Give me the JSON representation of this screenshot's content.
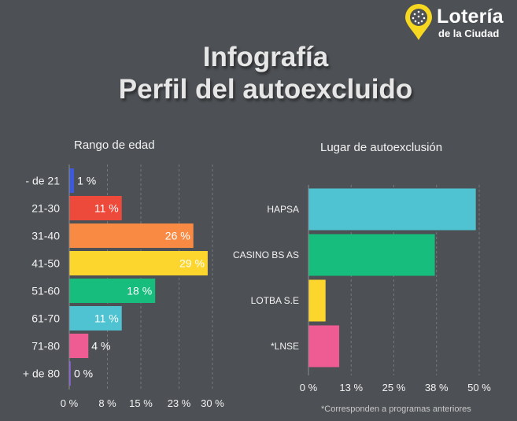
{
  "logo": {
    "title": "Lotería",
    "subtitle": "de la Ciudad",
    "icon": "map-pin-icon"
  },
  "title_line1": "Infografía",
  "title_line2": "Perfil del autoexcluido",
  "footnote": "*Corresponden a programas anteriores",
  "chart_data": [
    {
      "type": "bar",
      "orientation": "horizontal",
      "title": "Rango de edad",
      "categories": [
        "- de 21",
        "21-30",
        "31-40",
        "41-50",
        "51-60",
        "61-70",
        "71-80",
        "+ de 80"
      ],
      "values": [
        1,
        11,
        26,
        29,
        18,
        11,
        4,
        0
      ],
      "labels": [
        "1 %",
        "11 %",
        "26 %",
        "29 %",
        "18 %",
        "11 %",
        "4 %",
        "0 %"
      ],
      "colors": [
        "#3b5bdb",
        "#ee4a3b",
        "#f98a44",
        "#fcd52d",
        "#16bd7d",
        "#4fc3d1",
        "#ef5c94",
        "#7f57d6"
      ],
      "xlim": [
        0,
        30
      ],
      "ticks": [
        0,
        8,
        15,
        23,
        30
      ],
      "tick_labels": [
        "0 %",
        "8 %",
        "15 %",
        "23 %",
        "30 %"
      ],
      "grid": true
    },
    {
      "type": "bar",
      "orientation": "horizontal",
      "title": "Lugar de autoexclusión",
      "categories": [
        "HAPSA",
        "CASINO BS AS",
        "LOTBA S.E",
        "*LNSE"
      ],
      "values": [
        49,
        37,
        5,
        9
      ],
      "colors": [
        "#4fc3d1",
        "#16bd7d",
        "#fcd52d",
        "#ef5c94"
      ],
      "xlim": [
        0,
        50
      ],
      "ticks": [
        0,
        12.5,
        25,
        37.5,
        50
      ],
      "tick_labels": [
        "0 %",
        "13 %",
        "25 %",
        "38 %",
        "50 %"
      ],
      "grid": true
    }
  ]
}
